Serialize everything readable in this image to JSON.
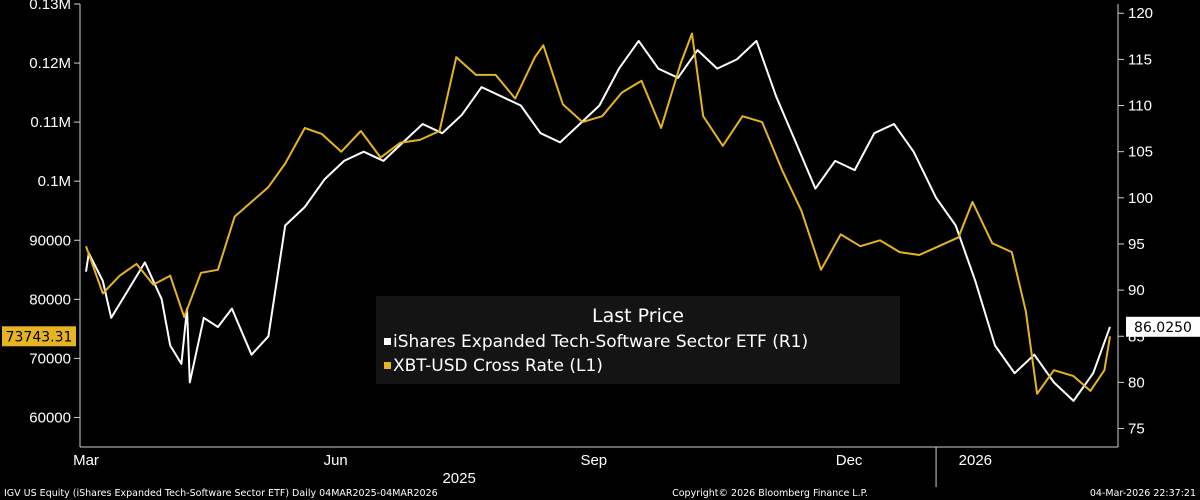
{
  "chart_data": {
    "type": "line",
    "legend": {
      "title": "Last Price",
      "placement": "center"
    },
    "x_range": [
      "2025-03-04",
      "2026-03-04"
    ],
    "x_month_ticks": [
      {
        "label": "Mar",
        "date": "2025-03-04"
      },
      {
        "label": "Jun",
        "date": "2025-06-01"
      },
      {
        "label": "Sep",
        "date": "2025-09-01"
      },
      {
        "label": "Dec",
        "date": "2025-12-01"
      },
      {
        "label": "2026",
        "date": "2026-01-15"
      }
    ],
    "x_year_labels": [
      {
        "label": "2025",
        "date": "2025-07-15"
      }
    ],
    "x_year_divider_date": "2026-01-01",
    "left_axis": {
      "min": 55000,
      "max": 130000,
      "ticks": [
        {
          "value": 60000,
          "label": "60000"
        },
        {
          "value": 70000,
          "label": "70000"
        },
        {
          "value": 80000,
          "label": "80000"
        },
        {
          "value": 90000,
          "label": "90000"
        },
        {
          "value": 100000,
          "label": "0.1M"
        },
        {
          "value": 110000,
          "label": "0.11M"
        },
        {
          "value": 120000,
          "label": "0.12M"
        },
        {
          "value": 130000,
          "label": "0.13M"
        }
      ]
    },
    "right_axis": {
      "min": 73,
      "max": 121,
      "ticks": [
        {
          "value": 75,
          "label": "75"
        },
        {
          "value": 80,
          "label": "80"
        },
        {
          "value": 85,
          "label": "85"
        },
        {
          "value": 90,
          "label": "90"
        },
        {
          "value": 95,
          "label": "95"
        },
        {
          "value": 100,
          "label": "100"
        },
        {
          "value": 105,
          "label": "105"
        },
        {
          "value": 110,
          "label": "110"
        },
        {
          "value": 115,
          "label": "115"
        },
        {
          "value": 120,
          "label": "120"
        }
      ]
    },
    "series": [
      {
        "name": "iShares Expanded Tech-Software Sector ETF (R1)",
        "axis": "right",
        "color": "#ffffff",
        "last_value_label": "86.0250",
        "points": [
          [
            "2025-03-04",
            92
          ],
          [
            "2025-03-05",
            94
          ],
          [
            "2025-03-10",
            91
          ],
          [
            "2025-03-13",
            87
          ],
          [
            "2025-03-19",
            90
          ],
          [
            "2025-03-25",
            93
          ],
          [
            "2025-03-31",
            89
          ],
          [
            "2025-04-03",
            84
          ],
          [
            "2025-04-07",
            82
          ],
          [
            "2025-04-09",
            88
          ],
          [
            "2025-04-10",
            80
          ],
          [
            "2025-04-15",
            87
          ],
          [
            "2025-04-20",
            86
          ],
          [
            "2025-04-25",
            88
          ],
          [
            "2025-05-02",
            83
          ],
          [
            "2025-05-08",
            85
          ],
          [
            "2025-05-14",
            97
          ],
          [
            "2025-05-21",
            99
          ],
          [
            "2025-05-28",
            102
          ],
          [
            "2025-06-04",
            104
          ],
          [
            "2025-06-11",
            105
          ],
          [
            "2025-06-18",
            104
          ],
          [
            "2025-06-25",
            106
          ],
          [
            "2025-07-02",
            108
          ],
          [
            "2025-07-09",
            107
          ],
          [
            "2025-07-16",
            109
          ],
          [
            "2025-07-23",
            112
          ],
          [
            "2025-07-30",
            111
          ],
          [
            "2025-08-06",
            110
          ],
          [
            "2025-08-13",
            107
          ],
          [
            "2025-08-20",
            106
          ],
          [
            "2025-08-27",
            108
          ],
          [
            "2025-09-03",
            110
          ],
          [
            "2025-09-10",
            114
          ],
          [
            "2025-09-17",
            117
          ],
          [
            "2025-09-24",
            114
          ],
          [
            "2025-10-01",
            113
          ],
          [
            "2025-10-08",
            116
          ],
          [
            "2025-10-15",
            114
          ],
          [
            "2025-10-22",
            115
          ],
          [
            "2025-10-29",
            117
          ],
          [
            "2025-11-05",
            111
          ],
          [
            "2025-11-12",
            106
          ],
          [
            "2025-11-19",
            101
          ],
          [
            "2025-11-26",
            104
          ],
          [
            "2025-12-03",
            103
          ],
          [
            "2025-12-10",
            107
          ],
          [
            "2025-12-17",
            108
          ],
          [
            "2025-12-24",
            105
          ],
          [
            "2026-01-01",
            100
          ],
          [
            "2026-01-08",
            97
          ],
          [
            "2026-01-15",
            91
          ],
          [
            "2026-01-22",
            84
          ],
          [
            "2026-01-29",
            81
          ],
          [
            "2026-02-05",
            83
          ],
          [
            "2026-02-12",
            80
          ],
          [
            "2026-02-19",
            78
          ],
          [
            "2026-02-26",
            81
          ],
          [
            "2026-03-04",
            86.025
          ]
        ]
      },
      {
        "name": "XBT-USD Cross Rate (L1)",
        "axis": "left",
        "color": "#e6b422",
        "last_value_label": "73743.31",
        "points": [
          [
            "2025-03-04",
            89000
          ],
          [
            "2025-03-10",
            81000
          ],
          [
            "2025-03-16",
            84000
          ],
          [
            "2025-03-22",
            86000
          ],
          [
            "2025-03-28",
            82500
          ],
          [
            "2025-04-03",
            84000
          ],
          [
            "2025-04-08",
            77000
          ],
          [
            "2025-04-14",
            84500
          ],
          [
            "2025-04-20",
            85000
          ],
          [
            "2025-04-26",
            94000
          ],
          [
            "2025-05-02",
            96500
          ],
          [
            "2025-05-08",
            99000
          ],
          [
            "2025-05-14",
            103000
          ],
          [
            "2025-05-21",
            109000
          ],
          [
            "2025-05-27",
            108000
          ],
          [
            "2025-06-03",
            105000
          ],
          [
            "2025-06-10",
            108500
          ],
          [
            "2025-06-17",
            104000
          ],
          [
            "2025-06-24",
            106500
          ],
          [
            "2025-07-01",
            107000
          ],
          [
            "2025-07-08",
            108500
          ],
          [
            "2025-07-14",
            121000
          ],
          [
            "2025-07-21",
            118000
          ],
          [
            "2025-07-28",
            118000
          ],
          [
            "2025-08-04",
            114000
          ],
          [
            "2025-08-11",
            121000
          ],
          [
            "2025-08-14",
            123000
          ],
          [
            "2025-08-21",
            113000
          ],
          [
            "2025-08-28",
            110000
          ],
          [
            "2025-09-04",
            111000
          ],
          [
            "2025-09-11",
            115000
          ],
          [
            "2025-09-18",
            117000
          ],
          [
            "2025-09-25",
            109000
          ],
          [
            "2025-10-02",
            120000
          ],
          [
            "2025-10-06",
            125000
          ],
          [
            "2025-10-10",
            111000
          ],
          [
            "2025-10-17",
            106000
          ],
          [
            "2025-10-24",
            111000
          ],
          [
            "2025-10-31",
            110000
          ],
          [
            "2025-11-07",
            102000
          ],
          [
            "2025-11-14",
            95000
          ],
          [
            "2025-11-21",
            85000
          ],
          [
            "2025-11-28",
            91000
          ],
          [
            "2025-12-05",
            89000
          ],
          [
            "2025-12-12",
            90000
          ],
          [
            "2025-12-19",
            88000
          ],
          [
            "2025-12-26",
            87500
          ],
          [
            "2026-01-02",
            89000
          ],
          [
            "2026-01-09",
            90500
          ],
          [
            "2026-01-14",
            96500
          ],
          [
            "2026-01-21",
            89500
          ],
          [
            "2026-01-28",
            88000
          ],
          [
            "2026-02-02",
            78000
          ],
          [
            "2026-02-06",
            64000
          ],
          [
            "2026-02-12",
            68000
          ],
          [
            "2026-02-19",
            67000
          ],
          [
            "2026-02-25",
            64500
          ],
          [
            "2026-03-02",
            68000
          ],
          [
            "2026-03-04",
            73743.31
          ]
        ]
      }
    ],
    "footer_left": "IGV US Equity (iShares Expanded Tech-Software Sector ETF) Daily 04MAR2025-04MAR2026",
    "footer_center": "Copyright© 2026 Bloomberg Finance L.P.",
    "footer_right": "04-Mar-2026 22:37:21"
  }
}
